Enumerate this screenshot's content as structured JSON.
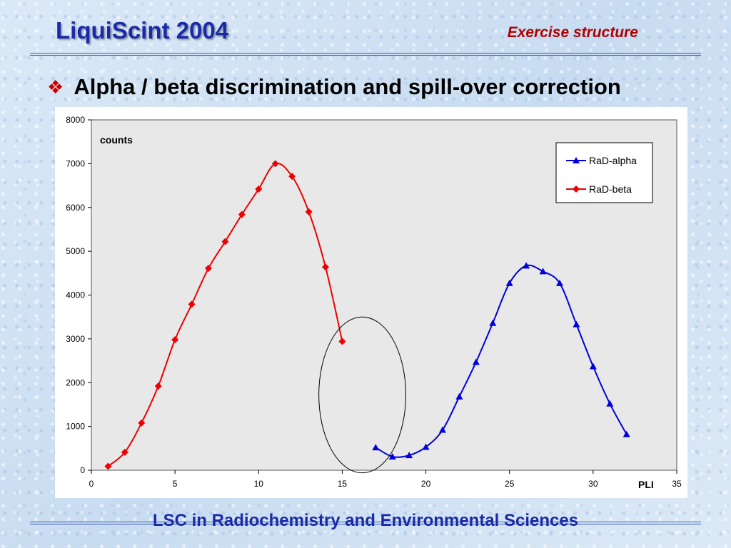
{
  "slide": {
    "title": "LiquiScint 2004",
    "section_label": "Exercise structure",
    "heading": "Alpha / beta discrimination and spill-over correction",
    "footer": "LSC in Radiochemistry and Environmental Sciences",
    "bullet_icon": "four-diamond-bullet-icon"
  },
  "colors": {
    "title": "#1a2aa8",
    "section_label": "#b00000",
    "bullet": "#cc0000",
    "plot_area": "#e8e8e8",
    "alpha_series": "#0000dd",
    "beta_series": "#ee0000"
  },
  "chart_data": {
    "type": "line",
    "title": "",
    "xlabel": "PLI",
    "ylabel": "counts",
    "xlim": [
      0,
      35
    ],
    "ylim": [
      0,
      8000
    ],
    "x_ticks": [
      0,
      5,
      10,
      15,
      20,
      25,
      30,
      35
    ],
    "y_ticks": [
      0,
      1000,
      2000,
      3000,
      4000,
      5000,
      6000,
      7000,
      8000
    ],
    "grid": false,
    "legend_position": "top-right",
    "series": [
      {
        "name": "RaD-alpha",
        "color": "#0000dd",
        "marker": "triangle",
        "x": [
          17,
          18,
          19,
          20,
          21,
          22,
          23,
          24,
          25,
          26,
          27,
          28,
          29,
          30,
          31,
          32
        ],
        "y": [
          520,
          310,
          340,
          530,
          920,
          1680,
          2470,
          3360,
          4270,
          4670,
          4540,
          4270,
          3330,
          2370,
          1520,
          820
        ]
      },
      {
        "name": "RaD-beta",
        "color": "#ee0000",
        "marker": "diamond",
        "x": [
          1,
          2,
          3,
          4,
          5,
          6,
          7,
          8,
          9,
          10,
          11,
          12,
          13,
          14,
          15
        ],
        "y": [
          90,
          410,
          1080,
          1920,
          2980,
          3790,
          4610,
          5220,
          5840,
          6420,
          7000,
          6710,
          5900,
          4640,
          2940
        ]
      }
    ],
    "annotations": [
      {
        "type": "ellipse",
        "center": [
          16.2,
          1720
        ],
        "rx_data": 2.6,
        "ry_data": 1780
      }
    ]
  }
}
